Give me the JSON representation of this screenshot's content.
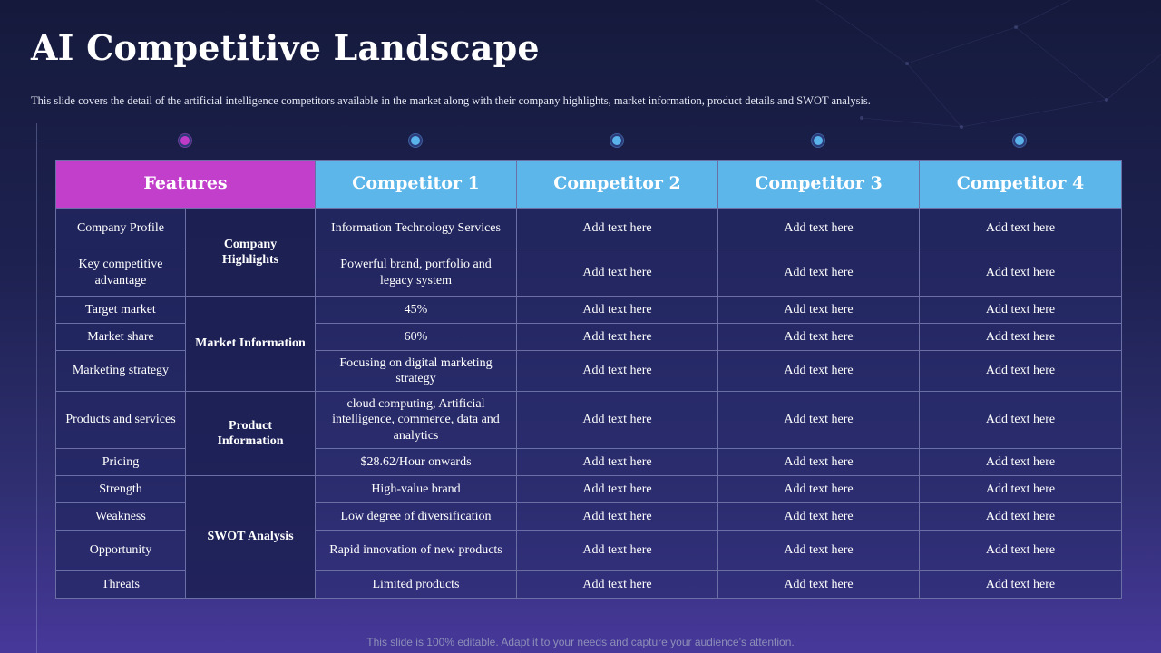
{
  "slide": {
    "title": "AI Competitive Landscape",
    "subtitle": "This slide covers the detail of the artificial intelligence competitors available in the market along with their company highlights, market information, product details and SWOT analysis.",
    "footer": "This slide is 100% editable. Adapt it to your needs and capture your audience’s attention."
  },
  "colors": {
    "features_header": "#c23fcb",
    "competitor_header": "#5cb6ea"
  },
  "table": {
    "headers": [
      "Features",
      "Competitor 1",
      "Competitor 2",
      "Competitor 3",
      "Competitor 4"
    ],
    "groups": [
      "Company Highlights",
      "Market Information",
      "Product Information",
      "SWOT Analysis"
    ],
    "rows": [
      {
        "feature": "Company Profile",
        "c1": "Information Technology Services",
        "c2": "Add text here",
        "c3": "Add text here",
        "c4": "Add text here"
      },
      {
        "feature": "Key competitive advantage",
        "c1": "Powerful brand, portfolio and legacy system",
        "c2": "Add text here",
        "c3": "Add text here",
        "c4": "Add text here"
      },
      {
        "feature": "Target market",
        "c1": "45%",
        "c2": "Add text here",
        "c3": "Add text here",
        "c4": "Add text here"
      },
      {
        "feature": "Market share",
        "c1": "60%",
        "c2": "Add text here",
        "c3": "Add text here",
        "c4": "Add text here"
      },
      {
        "feature": "Marketing strategy",
        "c1": "Focusing on digital marketing strategy",
        "c2": "Add text here",
        "c3": "Add text here",
        "c4": "Add text here"
      },
      {
        "feature": "Products and services",
        "c1": "cloud computing, Artificial intelligence, commerce, data and analytics",
        "c2": "Add text here",
        "c3": "Add text here",
        "c4": "Add text here"
      },
      {
        "feature": "Pricing",
        "c1": "$28.62/Hour onwards",
        "c2": "Add text here",
        "c3": "Add text here",
        "c4": "Add text here"
      },
      {
        "feature": "Strength",
        "c1": "High-value brand",
        "c2": "Add text here",
        "c3": "Add text here",
        "c4": "Add text here"
      },
      {
        "feature": "Weakness",
        "c1": "Low degree of diversification",
        "c2": "Add text here",
        "c3": "Add text here",
        "c4": "Add text here"
      },
      {
        "feature": "Opportunity",
        "c1": "Rapid innovation of new products",
        "c2": "Add text here",
        "c3": "Add text here",
        "c4": "Add text here"
      },
      {
        "feature": "Threats",
        "c1": "Limited products",
        "c2": "Add text here",
        "c3": "Add text here",
        "c4": "Add text here"
      }
    ]
  }
}
